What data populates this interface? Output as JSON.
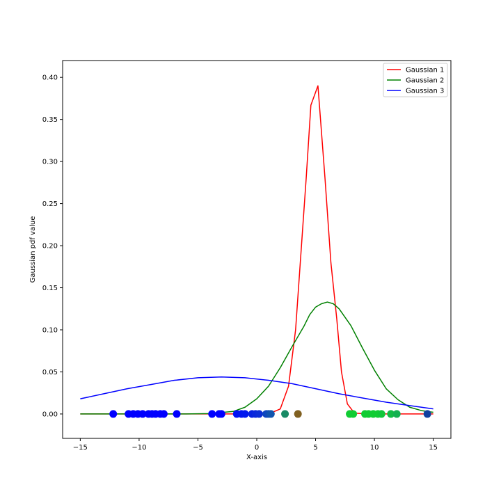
{
  "chart_data": {
    "type": "line",
    "title": "",
    "xlabel": "X-axis",
    "ylabel": "Gaussian pdf value",
    "xlim": [
      -16.5,
      16.5
    ],
    "ylim": [
      -0.029,
      0.42
    ],
    "xticks": [
      -15,
      -10,
      -5,
      0,
      5,
      10,
      15
    ],
    "xtick_labels": [
      "−15",
      "−10",
      "−5",
      "0",
      "5",
      "10",
      "15"
    ],
    "yticks": [
      0.0,
      0.05,
      0.1,
      0.15,
      0.2,
      0.25,
      0.3,
      0.35,
      0.4
    ],
    "ytick_labels": [
      "0.00",
      "0.05",
      "0.10",
      "0.15",
      "0.20",
      "0.25",
      "0.30",
      "0.35",
      "0.40"
    ],
    "grid": false,
    "legend": {
      "placement": "top-right",
      "entries": [
        "Gaussian 1",
        "Gaussian 2",
        "Gaussian 3"
      ]
    },
    "series": [
      {
        "name": "Gaussian 1",
        "color": "#ff0000",
        "x": [
          -15,
          -3.5,
          1.0,
          2.0,
          2.7,
          3.3,
          3.8,
          4.2,
          4.6,
          5.2,
          5.8,
          6.3,
          6.8,
          7.2,
          7.7,
          8.3,
          9.5,
          15
        ],
        "y": [
          0.0,
          0.0,
          0.0,
          0.006,
          0.033,
          0.1,
          0.2,
          0.28,
          0.367,
          0.39,
          0.28,
          0.18,
          0.113,
          0.05,
          0.012,
          0.001,
          0.0,
          0.0
        ]
      },
      {
        "name": "Gaussian 2",
        "color": "#008000",
        "x": [
          -15,
          -6,
          -4,
          -2,
          -1,
          0,
          1,
          2,
          3,
          4,
          4.5,
          5,
          5.5,
          6,
          6.5,
          7,
          8,
          9,
          10,
          11,
          12,
          13,
          14,
          15
        ],
        "y": [
          0.0,
          0.0,
          0.0005,
          0.003,
          0.008,
          0.018,
          0.033,
          0.055,
          0.08,
          0.104,
          0.118,
          0.127,
          0.131,
          0.133,
          0.131,
          0.125,
          0.105,
          0.078,
          0.052,
          0.03,
          0.017,
          0.008,
          0.004,
          0.002
        ]
      },
      {
        "name": "Gaussian 3",
        "color": "#0000ff",
        "x": [
          -15,
          -13,
          -11,
          -9,
          -7,
          -5,
          -3,
          -1,
          1,
          3,
          5,
          7,
          9,
          11,
          13,
          15
        ],
        "y": [
          0.018,
          0.024,
          0.03,
          0.035,
          0.04,
          0.043,
          0.044,
          0.043,
          0.04,
          0.036,
          0.03,
          0.024,
          0.019,
          0.014,
          0.01,
          0.006
        ]
      }
    ],
    "scatter_points": {
      "y": 0.0,
      "points": [
        {
          "x": -12.2,
          "color": "#0000ff"
        },
        {
          "x": -10.9,
          "color": "#0000ff"
        },
        {
          "x": -10.5,
          "color": "#0000ff"
        },
        {
          "x": -10.1,
          "color": "#0000ff"
        },
        {
          "x": -9.7,
          "color": "#0000ff"
        },
        {
          "x": -9.2,
          "color": "#0000ff"
        },
        {
          "x": -8.9,
          "color": "#0000ff"
        },
        {
          "x": -8.6,
          "color": "#0000ff"
        },
        {
          "x": -8.2,
          "color": "#0000ff"
        },
        {
          "x": -7.9,
          "color": "#0000ff"
        },
        {
          "x": -6.8,
          "color": "#0000ff"
        },
        {
          "x": -3.8,
          "color": "#0000ff"
        },
        {
          "x": -3.2,
          "color": "#0000ff"
        },
        {
          "x": -3.0,
          "color": "#0000ff"
        },
        {
          "x": -1.7,
          "color": "#0010f5"
        },
        {
          "x": -1.3,
          "color": "#0014f0"
        },
        {
          "x": -1.0,
          "color": "#0018ee"
        },
        {
          "x": -0.4,
          "color": "#0622e0"
        },
        {
          "x": -0.1,
          "color": "#0a28dc"
        },
        {
          "x": 0.2,
          "color": "#0c2ed6"
        },
        {
          "x": 0.8,
          "color": "#0e44c2"
        },
        {
          "x": 1.0,
          "color": "#0f4cb8"
        },
        {
          "x": 1.2,
          "color": "#1154ad"
        },
        {
          "x": 2.4,
          "color": "#188a65"
        },
        {
          "x": 3.5,
          "color": "#806020"
        },
        {
          "x": 7.9,
          "color": "#11cc33"
        },
        {
          "x": 8.2,
          "color": "#11cc33"
        },
        {
          "x": 9.2,
          "color": "#11cc33"
        },
        {
          "x": 9.5,
          "color": "#11cc33"
        },
        {
          "x": 9.9,
          "color": "#11cc33"
        },
        {
          "x": 10.3,
          "color": "#11cc33"
        },
        {
          "x": 10.6,
          "color": "#11c63a"
        },
        {
          "x": 11.4,
          "color": "#12bb45"
        },
        {
          "x": 11.9,
          "color": "#14b050"
        },
        {
          "x": 14.5,
          "color": "#1040a0"
        }
      ]
    }
  }
}
